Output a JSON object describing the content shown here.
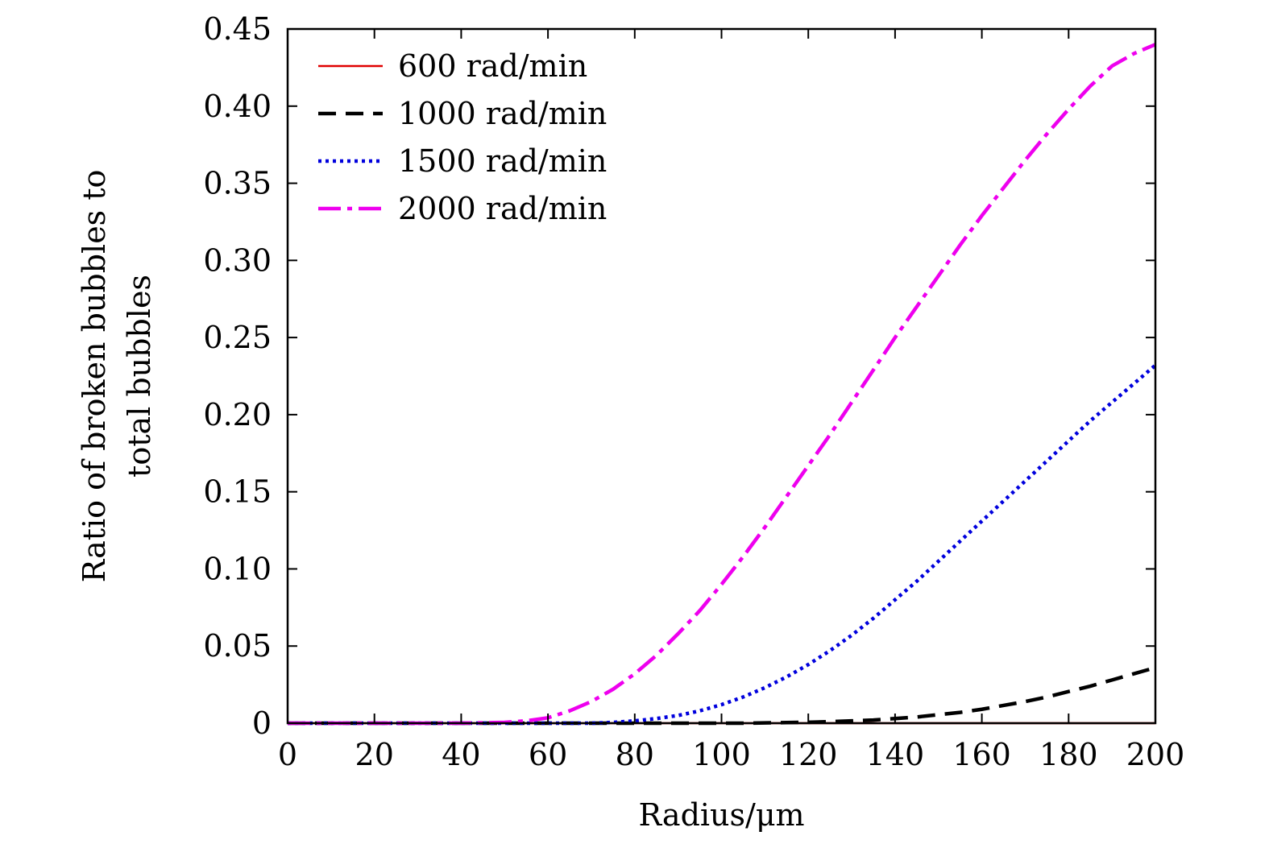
{
  "chart_data": {
    "type": "line",
    "title": "",
    "xlabel": "Radius/μm",
    "ylabel_lines": [
      "Ratio of broken bubbles to",
      "total bubbles"
    ],
    "xlim": [
      0,
      200
    ],
    "ylim": [
      0,
      0.45
    ],
    "grid": false,
    "legend_position": "top-left",
    "x_ticks": [
      0,
      20,
      40,
      60,
      80,
      100,
      120,
      140,
      160,
      180,
      200
    ],
    "x_tick_labels": [
      "0",
      "20",
      "40",
      "60",
      "80",
      "100",
      "120",
      "140",
      "160",
      "180",
      "200"
    ],
    "y_ticks": [
      0,
      0.05,
      0.1,
      0.15,
      0.2,
      0.25,
      0.3,
      0.35,
      0.4,
      0.45
    ],
    "y_tick_labels": [
      "0",
      "0.05",
      "0.10",
      "0.15",
      "0.20",
      "0.25",
      "0.30",
      "0.35",
      "0.40",
      "0.45"
    ],
    "x": [
      0,
      20,
      40,
      50,
      55,
      60,
      65,
      70,
      75,
      80,
      85,
      90,
      95,
      100,
      105,
      110,
      115,
      120,
      125,
      130,
      135,
      140,
      145,
      150,
      155,
      160,
      165,
      170,
      175,
      180,
      185,
      190,
      195,
      200
    ],
    "series": [
      {
        "name": "600 rad/min",
        "color": "#e00000",
        "style": "solid",
        "values": [
          0,
          0,
          0,
          0,
          0,
          0,
          0,
          0,
          0,
          0,
          0,
          0,
          0,
          0,
          0,
          0,
          0,
          0,
          0,
          0,
          0,
          0,
          0,
          0,
          0,
          0,
          0,
          0,
          0,
          0,
          0,
          0,
          0,
          0
        ]
      },
      {
        "name": "1000 rad/min",
        "color": "#000000",
        "style": "dashed",
        "values": [
          0,
          0,
          0,
          0,
          0,
          0,
          0,
          0,
          0,
          0,
          0,
          0,
          0,
          0,
          0,
          0.0002,
          0.0004,
          0.0006,
          0.001,
          0.0015,
          0.002,
          0.003,
          0.004,
          0.0055,
          0.007,
          0.009,
          0.0115,
          0.014,
          0.017,
          0.0205,
          0.024,
          0.028,
          0.032,
          0.036
        ]
      },
      {
        "name": "1500 rad/min",
        "color": "#0000dd",
        "style": "dotted",
        "values": [
          0,
          0,
          0,
          0,
          0,
          0,
          0,
          0,
          0.0005,
          0.0015,
          0.003,
          0.005,
          0.008,
          0.012,
          0.017,
          0.023,
          0.03,
          0.038,
          0.047,
          0.057,
          0.068,
          0.08,
          0.092,
          0.105,
          0.118,
          0.131,
          0.144,
          0.157,
          0.17,
          0.183,
          0.196,
          0.208,
          0.22,
          0.232
        ]
      },
      {
        "name": "2000 rad/min",
        "color": "#ee00ee",
        "style": "dashdot",
        "values": [
          0,
          0,
          0,
          0.0005,
          0.0015,
          0.0035,
          0.008,
          0.014,
          0.022,
          0.032,
          0.044,
          0.058,
          0.073,
          0.09,
          0.108,
          0.127,
          0.147,
          0.167,
          0.187,
          0.208,
          0.229,
          0.25,
          0.27,
          0.29,
          0.31,
          0.329,
          0.347,
          0.365,
          0.382,
          0.398,
          0.413,
          0.426,
          0.434,
          0.44
        ]
      }
    ]
  }
}
